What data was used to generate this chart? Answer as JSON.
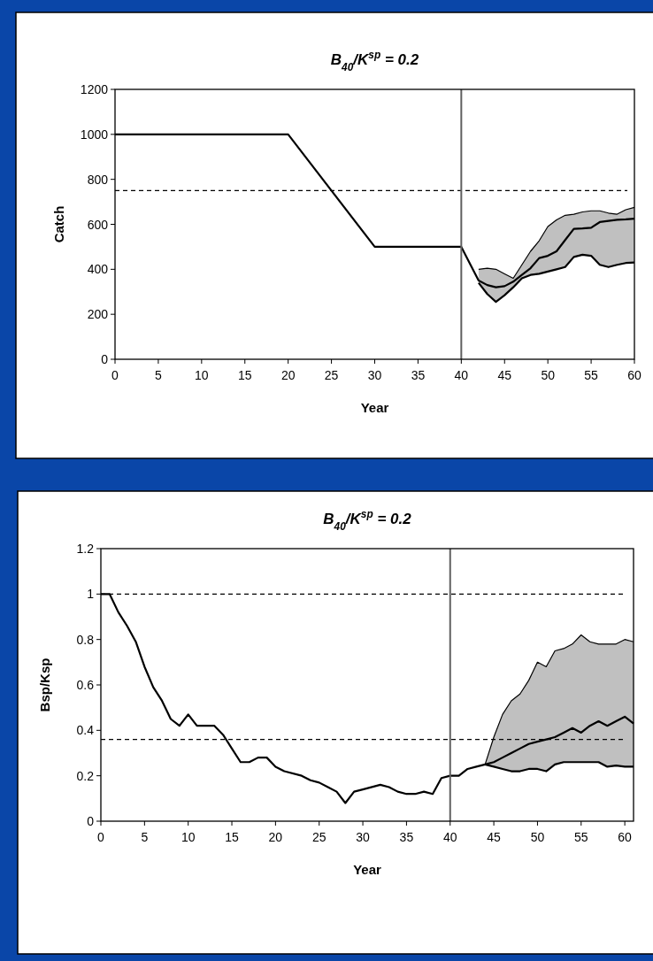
{
  "chart_data": [
    {
      "type": "line",
      "title": "B$_{40}$/K$^{sp}$ = 0.2",
      "xlabel": "Year",
      "ylabel": "Catch",
      "xlim": [
        0,
        60
      ],
      "ylim": [
        0,
        1200
      ],
      "xticks": [
        0,
        5,
        10,
        15,
        20,
        25,
        30,
        35,
        40,
        45,
        50,
        55,
        60
      ],
      "yticks": [
        0,
        200,
        400,
        600,
        800,
        1000,
        1200
      ],
      "grid": false,
      "series": [
        {
          "color": "#000000",
          "x": [
            0,
            20,
            30,
            40,
            42,
            43,
            44,
            45,
            46,
            47,
            48,
            49,
            50,
            51,
            52,
            53,
            54,
            55,
            56,
            57,
            58,
            59,
            60
          ],
          "values": [
            1000,
            1000,
            500,
            500,
            350,
            330,
            320,
            325,
            345,
            375,
            405,
            450,
            460,
            480,
            530,
            580,
            582,
            585,
            610,
            615,
            620,
            622,
            625
          ],
          "upper": [
            null,
            null,
            null,
            null,
            400,
            405,
            400,
            380,
            360,
            420,
            480,
            527,
            590,
            620,
            640,
            645,
            655,
            660,
            660,
            650,
            645,
            665,
            675
          ],
          "lower": [
            null,
            null,
            null,
            null,
            340,
            290,
            255,
            285,
            320,
            360,
            375,
            380,
            390,
            400,
            410,
            455,
            465,
            460,
            420,
            410,
            420,
            428,
            430
          ]
        },
        {
          "color": "#000000",
          "x": [
            42,
            43,
            44,
            45,
            46,
            47,
            48,
            49,
            50,
            51,
            52,
            53,
            54,
            55,
            56,
            57,
            58,
            59,
            60
          ],
          "values": [
            400,
            405,
            400,
            380,
            360,
            420,
            480,
            527,
            590,
            620,
            640,
            645,
            655,
            660,
            660,
            650,
            645,
            665,
            675
          ]
        },
        {
          "color": "#000000",
          "x": [
            42,
            43,
            44,
            45,
            46,
            47,
            48,
            49,
            50,
            51,
            52,
            53,
            54,
            55,
            56,
            57,
            58,
            59,
            60
          ],
          "values": [
            340,
            290,
            255,
            285,
            320,
            360,
            375,
            380,
            390,
            400,
            410,
            455,
            465,
            460,
            420,
            410,
            420,
            428,
            430
          ]
        }
      ],
      "ref_lines": [
        {
          "axis": "y",
          "value": 750,
          "color": "#000000",
          "line_style": "dashed"
        },
        {
          "axis": "x",
          "value": 40,
          "color": "#606060",
          "line_style": "solid"
        }
      ]
    },
    {
      "type": "line",
      "title": "B$_{40}$/K$^{sp}$ = 0.2",
      "xlabel": "Year",
      "ylabel": "Bsp/Ksp",
      "xlim": [
        0,
        61
      ],
      "ylim": [
        0,
        1.2
      ],
      "xticks": [
        0,
        5,
        10,
        15,
        20,
        25,
        30,
        35,
        40,
        45,
        50,
        55,
        60
      ],
      "yticks": [
        0,
        0.2,
        0.4,
        0.6,
        0.8,
        1,
        1.2
      ],
      "grid": false,
      "series": [
        {
          "color": "#000000",
          "x": [
            0,
            1,
            2,
            3,
            4,
            5,
            6,
            7,
            8,
            9,
            10,
            11,
            13,
            14,
            15,
            16,
            17,
            18,
            19,
            20,
            21,
            23,
            24,
            25,
            26,
            27,
            28,
            29,
            30,
            32,
            33,
            34,
            35,
            36,
            37,
            38,
            39,
            40,
            41,
            42,
            43,
            44,
            45,
            46,
            47,
            48,
            49,
            50,
            51,
            52,
            53,
            54,
            55,
            56,
            57,
            58,
            59,
            60,
            61
          ],
          "values": [
            1,
            1,
            0.92,
            0.86,
            0.79,
            0.68,
            0.59,
            0.53,
            0.45,
            0.42,
            0.47,
            0.42,
            0.42,
            0.38,
            0.32,
            0.26,
            0.26,
            0.28,
            0.28,
            0.24,
            0.22,
            0.2,
            0.18,
            0.17,
            0.15,
            0.13,
            0.08,
            0.13,
            0.14,
            0.16,
            0.15,
            0.13,
            0.12,
            0.12,
            0.13,
            0.12,
            0.19,
            0.2,
            0.2,
            0.23,
            0.24,
            0.25,
            0.26,
            0.28,
            0.3,
            0.32,
            0.34,
            0.35,
            0.36,
            0.37,
            0.39,
            0.41,
            0.39,
            0.42,
            0.44,
            0.42,
            0.44,
            0.46,
            0.43
          ],
          "upper": [
            null,
            null,
            null,
            null,
            null,
            null,
            null,
            null,
            null,
            null,
            null,
            null,
            null,
            null,
            null,
            null,
            null,
            null,
            null,
            null,
            null,
            null,
            null,
            null,
            null,
            null,
            null,
            null,
            null,
            null,
            null,
            null,
            null,
            null,
            null,
            null,
            null,
            null,
            null,
            null,
            null,
            0.25,
            0.37,
            0.47,
            0.53,
            0.56,
            0.62,
            0.7,
            0.68,
            0.75,
            0.76,
            0.78,
            0.82,
            0.79,
            0.78,
            0.78,
            0.78,
            0.8,
            0.79
          ],
          "lower": [
            null,
            null,
            null,
            null,
            null,
            null,
            null,
            null,
            null,
            null,
            null,
            null,
            null,
            null,
            null,
            null,
            null,
            null,
            null,
            null,
            null,
            null,
            null,
            null,
            null,
            null,
            null,
            null,
            null,
            null,
            null,
            null,
            null,
            null,
            null,
            null,
            null,
            null,
            null,
            null,
            null,
            0.25,
            0.24,
            0.23,
            0.22,
            0.22,
            0.23,
            0.23,
            0.22,
            0.25,
            0.26,
            0.26,
            0.26,
            0.26,
            0.26,
            0.24,
            0.245,
            0.24,
            0.24
          ]
        },
        {
          "color": "#000000",
          "x": [
            44,
            45,
            46,
            47,
            48,
            49,
            50,
            51,
            52,
            53,
            54,
            55,
            56,
            57,
            58,
            59,
            60,
            61
          ],
          "values": [
            0.25,
            0.37,
            0.47,
            0.53,
            0.56,
            0.62,
            0.7,
            0.68,
            0.75,
            0.76,
            0.78,
            0.82,
            0.79,
            0.78,
            0.78,
            0.78,
            0.8,
            0.79
          ]
        },
        {
          "color": "#000000",
          "x": [
            44,
            45,
            46,
            47,
            48,
            49,
            50,
            51,
            52,
            53,
            54,
            55,
            56,
            57,
            58,
            59,
            60,
            61
          ],
          "values": [
            0.25,
            0.24,
            0.23,
            0.22,
            0.22,
            0.23,
            0.23,
            0.22,
            0.25,
            0.26,
            0.26,
            0.26,
            0.26,
            0.26,
            0.24,
            0.245,
            0.24,
            0.24
          ]
        }
      ],
      "ref_lines": [
        {
          "axis": "y",
          "value": 1,
          "color": "#000000",
          "line_style": "dashed"
        },
        {
          "axis": "y",
          "value": 0.36,
          "color": "#000000",
          "line_style": "dashed"
        },
        {
          "axis": "x",
          "value": 40,
          "color": "#606060",
          "line_style": "solid"
        }
      ]
    }
  ]
}
